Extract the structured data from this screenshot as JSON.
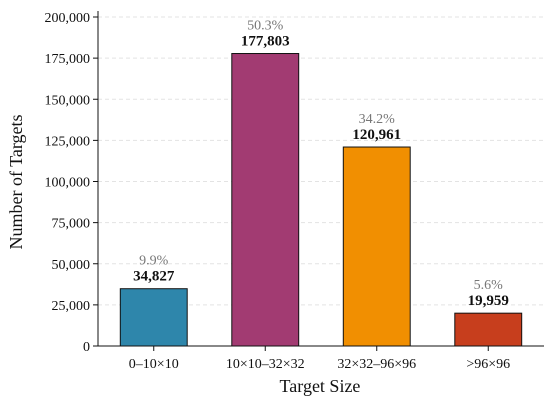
{
  "chart_data": {
    "type": "bar",
    "title": "",
    "xlabel": "Target Size",
    "ylabel": "Number of Targets",
    "categories": [
      "0–10×10",
      "10×10–32×32",
      "32×32–96×96",
      ">96×96"
    ],
    "values": [
      34827,
      177803,
      120961,
      19959
    ],
    "value_labels": [
      "34,827",
      "177,803",
      "120,961",
      "19,959"
    ],
    "percent_labels": [
      "9.9%",
      "50.3%",
      "34.2%",
      "5.6%"
    ],
    "colors": [
      "#2e86ab",
      "#a23b72",
      "#f18f01",
      "#c73e1d"
    ],
    "ylim": [
      0,
      200000
    ],
    "yticks": [
      0,
      25000,
      50000,
      75000,
      100000,
      125000,
      150000,
      175000,
      200000
    ],
    "ytick_labels": [
      "0",
      "25,000",
      "50,000",
      "75,000",
      "100,000",
      "125,000",
      "150,000",
      "175,000",
      "200,000"
    ],
    "grid": true,
    "legend": "none"
  }
}
